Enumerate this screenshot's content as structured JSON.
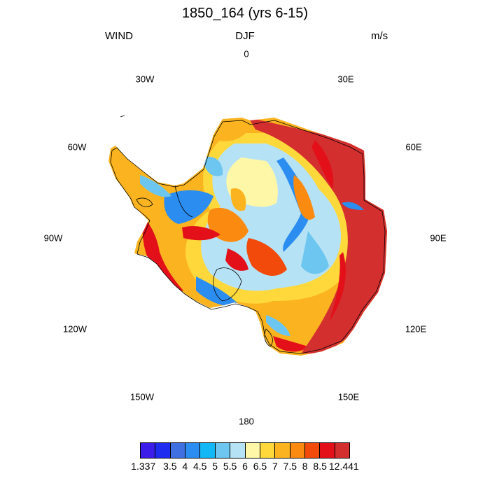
{
  "header": {
    "title": "1850_164 (yrs 6-15)",
    "left": "WIND",
    "center": "DJF",
    "right": "m/s"
  },
  "longitude_labels": [
    "0",
    "30E",
    "60E",
    "90E",
    "120E",
    "150E",
    "180",
    "150W",
    "120W",
    "90W",
    "60W",
    "30W"
  ],
  "colorbar": {
    "labels": [
      "1.337",
      "3.5",
      "4",
      "4.5",
      "5",
      "5.5",
      "6",
      "6.5",
      "7",
      "7.5",
      "8",
      "8.5",
      "12.441"
    ],
    "colors": [
      "#3b1ce8",
      "#1f2cf0",
      "#3f6fe0",
      "#2b8df0",
      "#12b7f5",
      "#6cc6f0",
      "#b6e2f5",
      "#fff7a8",
      "#ffd83b",
      "#fbb420",
      "#fa8a10",
      "#f24a0a",
      "#e3101a",
      "#d42f2f"
    ]
  },
  "map": {
    "region": "Antarctica",
    "projection": "south polar stereographic",
    "field": "near-surface wind speed"
  }
}
